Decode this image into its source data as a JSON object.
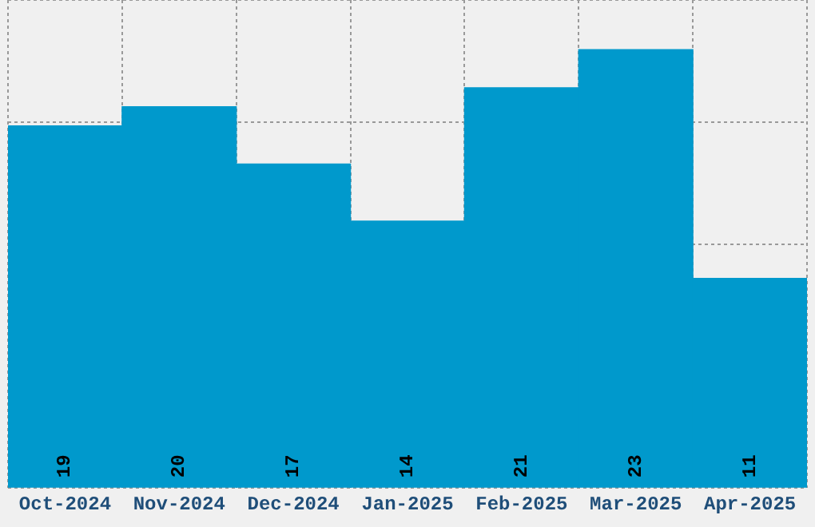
{
  "chart_data": {
    "type": "bar",
    "categories": [
      "Oct-2024",
      "Nov-2024",
      "Dec-2024",
      "Jan-2025",
      "Feb-2025",
      "Mar-2025",
      "Apr-2025"
    ],
    "values": [
      19,
      20,
      17,
      14,
      21,
      23,
      11
    ],
    "color": "#0099cc",
    "data_labels": true,
    "grid": true,
    "tick_labels": "x",
    "ylim": [
      0,
      25.6
    ]
  }
}
